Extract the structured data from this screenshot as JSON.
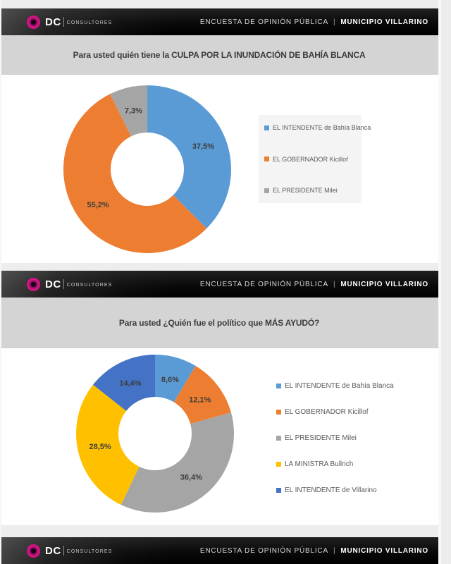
{
  "header": {
    "brand": "DC",
    "brand_suffix": "CONSULTORES",
    "survey_label": "ENCUESTA DE OPINIÓN PÚBLICA",
    "separator": "|",
    "municipality": "MUNICIPIO VILLARINO"
  },
  "slides": [
    {
      "title": "Para usted quién tiene la CULPA POR LA INUNDACIÓN DE BAHÍA BLANCA"
    },
    {
      "title": "Para usted ¿Quién fue el político que MÁS AYUDÓ?"
    }
  ],
  "theme": {
    "bar_bg": "#0A0A0A",
    "logo_ring": "#D31483",
    "title_band_bg": "#D4D4D4",
    "panel_bg": "#FFFFFF",
    "legend_box_bg": "#F4F4F4",
    "label_color": "#3D3D3D"
  },
  "chart_data": [
    {
      "type": "pie",
      "subtype": "donut",
      "title": "Para usted quién tiene la CULPA POR LA INUNDACIÓN DE BAHÍA BLANCA",
      "direction": "clockwise",
      "start_angle_deg": 0,
      "value_unit": "%",
      "decimal_separator": ",",
      "legend_position": "right",
      "series": [
        {
          "label": "EL INTENDENTE de Bahía Blanca",
          "value": 37.5,
          "display": "37,5%",
          "color": "#5B9BD5"
        },
        {
          "label": "EL GOBERNADOR Kicillof",
          "value": 55.2,
          "display": "55,2%",
          "color": "#ED7D31"
        },
        {
          "label": "EL PRESIDENTE Milei",
          "value": 7.3,
          "display": "7,3%",
          "color": "#A5A5A5"
        }
      ]
    },
    {
      "type": "pie",
      "subtype": "donut",
      "title": "Para usted ¿Quién fue el político que MÁS AYUDÓ?",
      "direction": "clockwise",
      "start_angle_deg": 0,
      "value_unit": "%",
      "decimal_separator": ",",
      "legend_position": "right",
      "series": [
        {
          "label": "EL INTENDENTE de Bahía Blanca",
          "value": 8.6,
          "display": "8,6%",
          "color": "#5B9BD5"
        },
        {
          "label": "EL GOBERNADOR Kicillof",
          "value": 12.1,
          "display": "12,1%",
          "color": "#ED7D31"
        },
        {
          "label": "EL PRESIDENTE Milei",
          "value": 36.4,
          "display": "36,4%",
          "color": "#A5A5A5"
        },
        {
          "label": "LA MINISTRA Bullrich",
          "value": 28.5,
          "display": "28,5%",
          "color": "#FFC000"
        },
        {
          "label": "EL INTENDENTE de Villarino",
          "value": 14.4,
          "display": "14,4%",
          "color": "#4472C4"
        }
      ]
    }
  ]
}
